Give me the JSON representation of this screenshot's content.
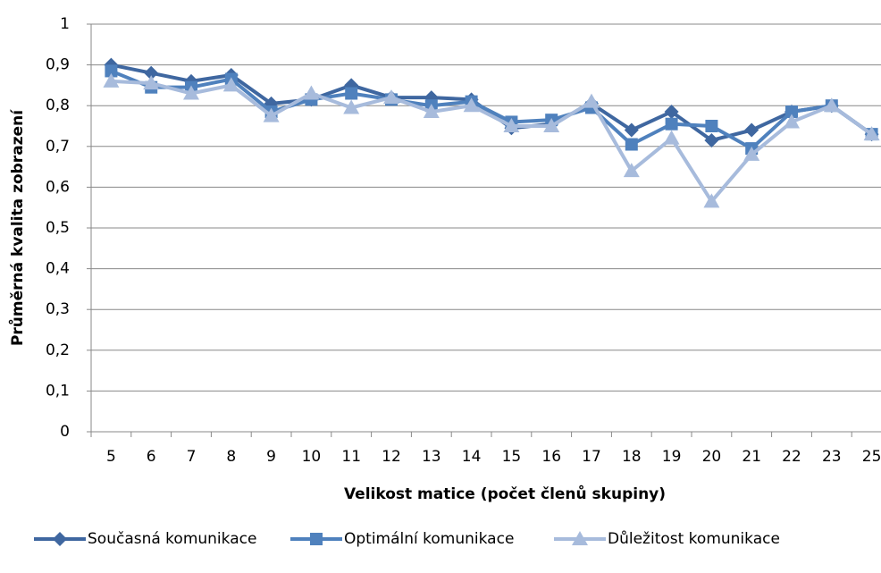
{
  "chart_data": {
    "type": "line",
    "x_label": "Velikost matice (počet členů skupiny)",
    "y_label": "Průměrná kvalita zobrazení",
    "categories": [
      "5",
      "6",
      "7",
      "8",
      "9",
      "10",
      "11",
      "12",
      "13",
      "14",
      "15",
      "16",
      "17",
      "18",
      "19",
      "20",
      "21",
      "22",
      "23",
      "25"
    ],
    "series": [
      {
        "name": "Současná komunikace",
        "color": "#3f67a0",
        "marker": "diamond",
        "values": [
          0.9,
          0.88,
          0.86,
          0.875,
          0.805,
          0.815,
          0.85,
          0.82,
          0.82,
          0.815,
          0.745,
          0.755,
          0.805,
          0.74,
          0.785,
          0.715,
          0.74,
          0.785,
          0.8,
          0.73
        ]
      },
      {
        "name": "Optimální komunikace",
        "color": "#4f81bd",
        "marker": "square",
        "values": [
          0.885,
          0.845,
          0.845,
          0.865,
          0.785,
          0.815,
          0.83,
          0.815,
          0.8,
          0.81,
          0.76,
          0.765,
          0.795,
          0.705,
          0.755,
          0.75,
          0.695,
          0.785,
          0.8,
          0.73
        ]
      },
      {
        "name": "Důležitost komunikace",
        "color": "#a7bbdc",
        "marker": "triangle",
        "values": [
          0.86,
          0.855,
          0.83,
          0.85,
          0.775,
          0.83,
          0.795,
          0.82,
          0.785,
          0.8,
          0.75,
          0.75,
          0.81,
          0.64,
          0.72,
          0.565,
          0.68,
          0.76,
          0.8,
          0.73
        ]
      }
    ],
    "ylim": [
      0,
      1
    ],
    "yticks": [
      0,
      {
        "value": 0.1,
        "label": "0,1"
      },
      {
        "value": 0.2,
        "label": "0,2"
      },
      {
        "value": 0.3,
        "label": "0,3"
      },
      {
        "value": 0.4,
        "label": "0,4"
      },
      {
        "value": 0.5,
        "label": "0,5"
      },
      {
        "value": 0.6,
        "label": "0,6"
      },
      {
        "value": 0.7,
        "label": "0,7"
      },
      {
        "value": 0.8,
        "label": "0,8"
      },
      {
        "value": 0.9,
        "label": "0,9"
      },
      1
    ],
    "grid": true,
    "legend": "bottom"
  }
}
